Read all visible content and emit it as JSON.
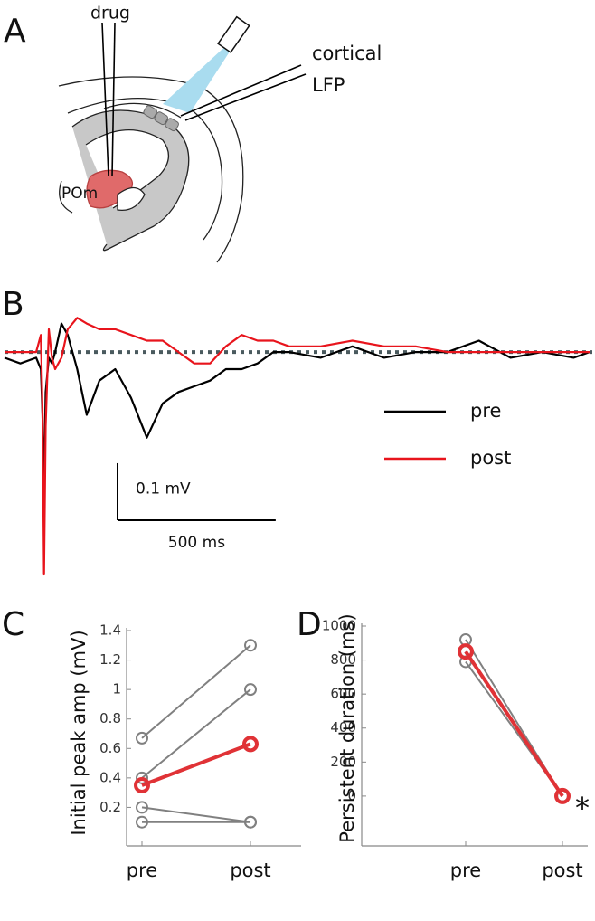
{
  "panel_labels": [
    "A",
    "B",
    "C",
    "D"
  ],
  "diagram": {
    "drug": "drug",
    "cortical": "cortical",
    "lfp": "LFP",
    "pom": "POm"
  },
  "chart_data": [
    {
      "type": "trace",
      "x": [
        0,
        50,
        100,
        115,
        120,
        125,
        130,
        140,
        150,
        160,
        180,
        200,
        230,
        260,
        300,
        350,
        400,
        450,
        500,
        550,
        600,
        650,
        700,
        750,
        800,
        850,
        900,
        1000,
        1100,
        1200,
        1300,
        1400,
        1500,
        1600,
        1700,
        1800,
        1850
      ],
      "xlim": [
        0,
        1850
      ],
      "ylim": [
        -0.39,
        0.07
      ],
      "reference_line": 0,
      "series": [
        {
          "name": "pre",
          "color": "#000000",
          "values": [
            -0.01,
            -0.02,
            -0.01,
            -0.03,
            -0.11,
            -0.25,
            -0.07,
            -0.01,
            -0.02,
            0,
            0.05,
            0.03,
            -0.03,
            -0.11,
            -0.05,
            -0.03,
            -0.08,
            -0.15,
            -0.09,
            -0.07,
            -0.06,
            -0.05,
            -0.03,
            -0.03,
            -0.02,
            0,
            0,
            -0.01,
            0.01,
            -0.01,
            0,
            0,
            0.02,
            -0.01,
            0,
            -0.01,
            0
          ]
        },
        {
          "name": "post",
          "color": "#e8141c",
          "values": [
            0,
            0,
            0,
            0.03,
            -0.1,
            -0.39,
            -0.13,
            0.04,
            -0.01,
            -0.03,
            -0.01,
            0.04,
            0.06,
            0.05,
            0.04,
            0.04,
            0.03,
            0.02,
            0.02,
            0,
            -0.02,
            -0.02,
            0.01,
            0.03,
            0.02,
            0.02,
            0.01,
            0.01,
            0.02,
            0.01,
            0.01,
            0,
            0,
            0,
            0,
            0,
            0
          ]
        }
      ],
      "scalebar": {
        "y": {
          "value": 0.1,
          "label": "0.1 mV"
        },
        "x": {
          "value": 500,
          "label": "500 ms"
        }
      }
    },
    {
      "type": "dots",
      "ylabel": "Initial peak amp (mV)",
      "categories": [
        "pre",
        "post"
      ],
      "ylim": [
        0,
        1.4
      ],
      "yticks": [
        0.2,
        0.4,
        0.6,
        0.8,
        1,
        1.2,
        1.4
      ],
      "series": [
        {
          "color": "#808080",
          "values": [
            0.67,
            1.3
          ]
        },
        {
          "color": "#808080",
          "values": [
            0.4,
            1.0
          ]
        },
        {
          "color": "#808080",
          "values": [
            0.2,
            0.1
          ]
        },
        {
          "color": "#808080",
          "values": [
            0.1,
            0.1
          ]
        },
        {
          "color": "#e03236",
          "values": [
            0.35,
            0.63
          ],
          "emphasis": true
        }
      ]
    },
    {
      "type": "dots",
      "ylabel": "Persistent duration (ms)",
      "categories": [
        "pre",
        "post"
      ],
      "ylim": [
        -240,
        1000
      ],
      "yticks": [
        0,
        200,
        400,
        600,
        800,
        1000
      ],
      "series": [
        {
          "color": "#808080",
          "values": [
            920,
            0
          ]
        },
        {
          "color": "#808080",
          "values": [
            850,
            0
          ]
        },
        {
          "color": "#808080",
          "values": [
            790,
            0
          ]
        },
        {
          "color": "#e03236",
          "values": [
            850,
            0
          ],
          "emphasis": true
        }
      ],
      "annotation": "*"
    }
  ]
}
